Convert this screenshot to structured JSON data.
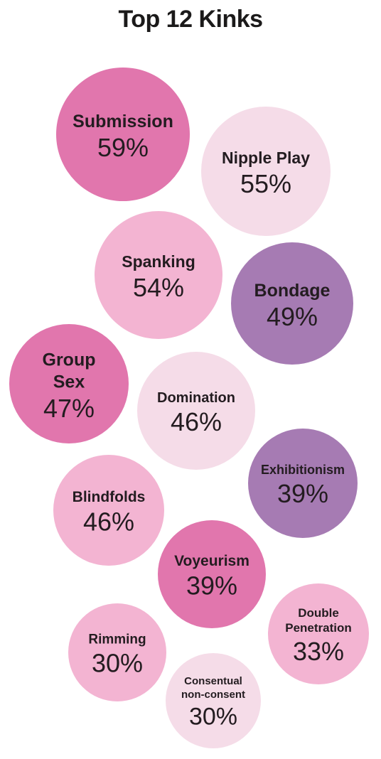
{
  "chart_data": {
    "type": "bubble",
    "title": "Top 12 Kinks",
    "items": [
      {
        "label": "Submission",
        "value": 59,
        "display": "59%",
        "color": "#e176ad"
      },
      {
        "label": "Nipple Play",
        "value": 55,
        "display": "55%",
        "color": "#f5dce8"
      },
      {
        "label": "Spanking",
        "value": 54,
        "display": "54%",
        "color": "#f3b4d2"
      },
      {
        "label": "Bondage",
        "value": 49,
        "display": "49%",
        "color": "#a67bb3"
      },
      {
        "label": "Group Sex",
        "value": 47,
        "display": "47%",
        "color": "#e176ad"
      },
      {
        "label": "Domination",
        "value": 46,
        "display": "46%",
        "color": "#f5dce8"
      },
      {
        "label": "Exhibitionism",
        "value": 39,
        "display": "39%",
        "color": "#a67bb3"
      },
      {
        "label": "Blindfolds",
        "value": 46,
        "display": "46%",
        "color": "#f3b4d2"
      },
      {
        "label": "Voyeurism",
        "value": 39,
        "display": "39%",
        "color": "#e176ad"
      },
      {
        "label": "Double Penetration",
        "value": 33,
        "display": "33%",
        "color": "#f3b4d2"
      },
      {
        "label": "Rimming",
        "value": 30,
        "display": "30%",
        "color": "#f3b4d2"
      },
      {
        "label": "Consentual non-consent",
        "value": 30,
        "display": "30%",
        "color": "#f5dce8"
      }
    ]
  }
}
